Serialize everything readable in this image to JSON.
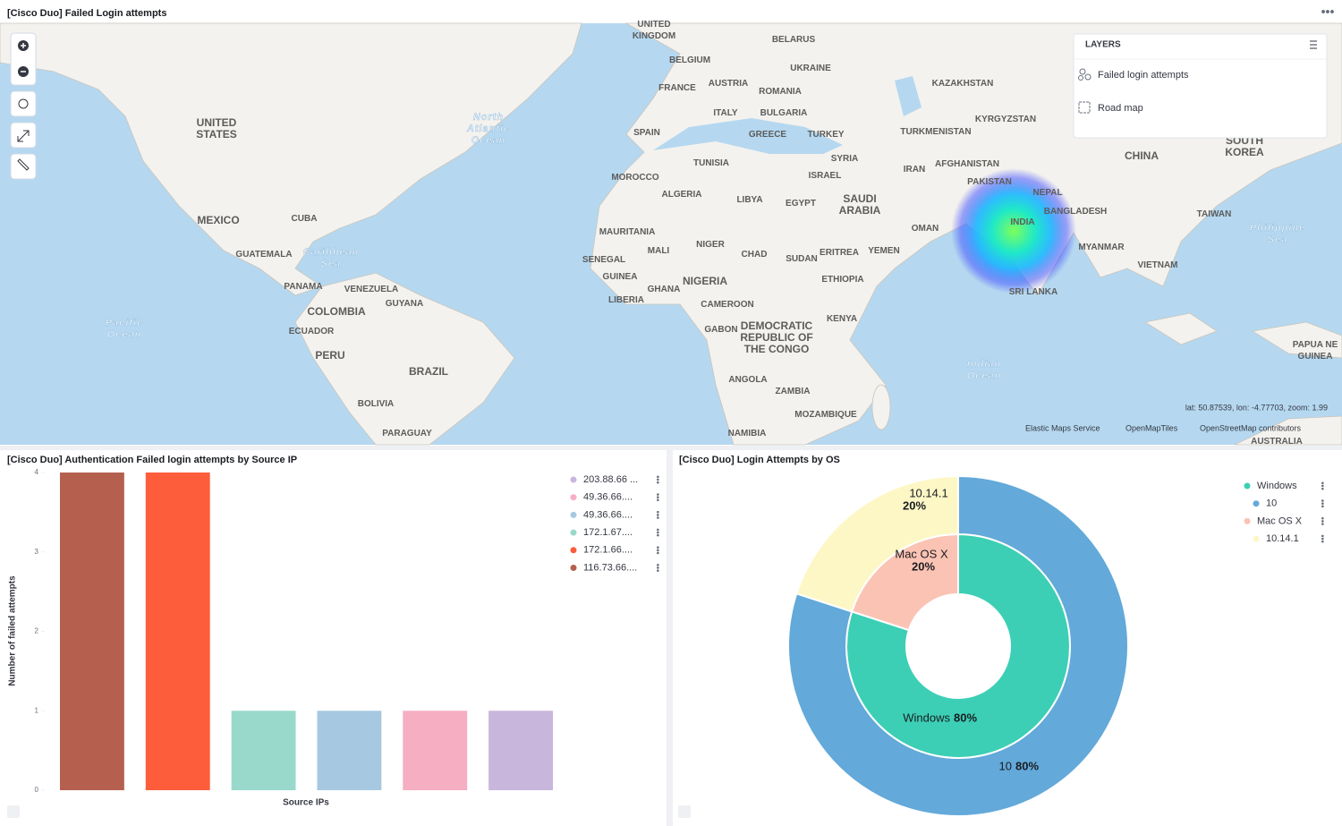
{
  "map_panel": {
    "title": "[Cisco Duo] Failed Login attempts",
    "layers_title": "LAYERS",
    "layers": [
      "Failed login attempts",
      "Road map"
    ],
    "coordinates": "lat: 50.87539, lon: -4.77703, zoom: 1.99",
    "attributions": [
      "Elastic Maps Service",
      "OpenMapTiles",
      "OpenStreetMap contributors"
    ],
    "labels": [
      [
        "UNITED",
        "KINGDOM"
      ],
      [
        "BELARUS"
      ],
      [
        "BELGIUM"
      ],
      [
        "UKRAINE"
      ],
      [
        "FRANCE"
      ],
      [
        "AUSTRIA"
      ],
      [
        "ROMANIA"
      ],
      [
        "ITALY"
      ],
      [
        "BULGARIA"
      ],
      [
        "SPAIN"
      ],
      [
        "GREECE"
      ],
      [
        "TURKEY"
      ],
      [
        "KAZAKHSTAN"
      ],
      [
        "KYRGYZSTAN"
      ],
      [
        "TURKMENISTAN"
      ],
      [
        "UNITED",
        "STATES"
      ],
      [
        "North",
        "Atlantic",
        "Ocean"
      ],
      [
        "TUNISIA"
      ],
      [
        "SYRIA"
      ],
      [
        "ISRAEL"
      ],
      [
        "IRAN"
      ],
      [
        "AFGHANISTAN"
      ],
      [
        "PAKISTAN"
      ],
      [
        "CHINA"
      ],
      [
        "SOUTH",
        "KOREA"
      ],
      [
        "MOROCCO"
      ],
      [
        "ALGERIA"
      ],
      [
        "LIBYA"
      ],
      [
        "EGYPT"
      ],
      [
        "SAUDI",
        "ARABIA"
      ],
      [
        "NEPAL"
      ],
      [
        "BANGLADESH"
      ],
      [
        "INDIA"
      ],
      [
        "TAIWAN"
      ],
      [
        "MEXICO"
      ],
      [
        "CUBA"
      ],
      [
        "OMAN"
      ],
      [
        "Philippine",
        "Sea"
      ],
      [
        "MAURITANIA"
      ],
      [
        "MALI"
      ],
      [
        "NIGER"
      ],
      [
        "CHAD"
      ],
      [
        "SUDAN"
      ],
      [
        "ERITREA"
      ],
      [
        "YEMEN"
      ],
      [
        "MYANMAR"
      ],
      [
        "GUATEMALA"
      ],
      [
        "Caribbean",
        "Sea"
      ],
      [
        "SENEGAL"
      ],
      [
        "VIETNAM"
      ],
      [
        "GUINEA"
      ],
      [
        "GHANA"
      ],
      [
        "NIGERIA"
      ],
      [
        "ETHIOPIA"
      ],
      [
        "PANAMA"
      ],
      [
        "VENEZUELA"
      ],
      [
        "SRI LANKA"
      ],
      [
        "LIBERIA"
      ],
      [
        "CAMEROON"
      ],
      [
        "GUYANA"
      ],
      [
        "COLOMBIA"
      ],
      [
        "DEMOCRATIC",
        "REPUBLIC OF",
        "THE CONGO"
      ],
      [
        "KENYA"
      ],
      [
        "GABON"
      ],
      [
        "Pacific",
        "Ocean"
      ],
      [
        "ECUADOR"
      ],
      [
        "PAPUA NE",
        "GUINEA"
      ],
      [
        "PERU"
      ],
      [
        "Indian",
        "Ocean"
      ],
      [
        "BRAZIL"
      ],
      [
        "ANGOLA"
      ],
      [
        "ZAMBIA"
      ],
      [
        "BOLIVIA"
      ],
      [
        "MOZAMBIQUE"
      ],
      [
        "NAMIBIA"
      ],
      [
        "PARAGUAY"
      ],
      [
        "AUSTRALIA"
      ]
    ]
  },
  "chart_data": [
    {
      "type": "bar",
      "title": "[Cisco Duo] Authentication Failed login attempts by Source IP",
      "ylabel": "Number of failed attempts",
      "xlabel": "Source IPs",
      "ylim": [
        0,
        4
      ],
      "yticks": [
        0,
        1,
        2,
        3,
        4
      ],
      "series": [
        {
          "name": "116.73.66....",
          "color": "#b5604f",
          "values": [
            4
          ]
        },
        {
          "name": "172.1.66....",
          "color": "#fd5d3b",
          "values": [
            4
          ]
        },
        {
          "name": "172.1.67....",
          "color": "#99d9cb",
          "values": [
            1
          ]
        },
        {
          "name": "49.36.66....",
          "color": "#a6c9e1",
          "values": [
            1
          ]
        },
        {
          "name": "49.36.66....",
          "color": "#f5aec2",
          "values": [
            1
          ]
        },
        {
          "name": "203.88.66 ...",
          "color": "#c9b6dc",
          "values": [
            1
          ]
        }
      ]
    },
    {
      "type": "sunburst",
      "title": "[Cisco Duo] Login Attempts by OS",
      "rings": [
        {
          "labels": [
            "Windows",
            "Mac OS X"
          ],
          "values": [
            80,
            20
          ],
          "value_labels": [
            "80%",
            "20%"
          ],
          "colors": [
            "#3ccfb5",
            "#fbc3b3"
          ]
        },
        {
          "labels": [
            "10",
            "10.14.1"
          ],
          "values": [
            80,
            20
          ],
          "value_labels": [
            "80%",
            "20%"
          ],
          "colors": [
            "#63a9da",
            "#fdf7c6"
          ]
        }
      ]
    }
  ]
}
